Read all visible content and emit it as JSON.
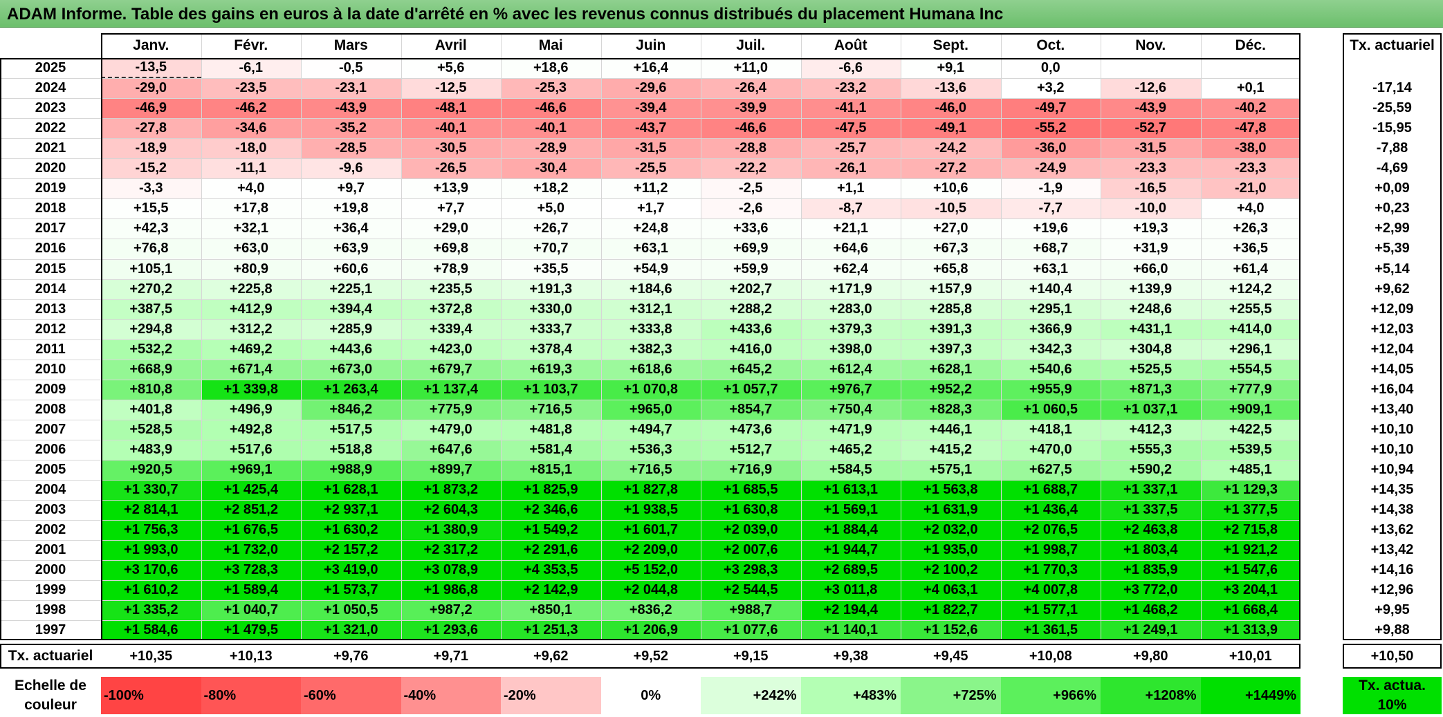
{
  "title": "ADAM Informe. Table des gains en euros à la date d'arrêté en % avec les revenus connus distribués du placement Humana Inc",
  "chart_data": {
    "type": "heatmap",
    "columns": [
      "Janv.",
      "Févr.",
      "Mars",
      "Avril",
      "Mai",
      "Juin",
      "Juil.",
      "Août",
      "Sept.",
      "Oct.",
      "Nov.",
      "Déc."
    ],
    "side_header": "Tx. actuariel",
    "row_label_total": "Tx. actuariel",
    "rows": [
      {
        "year": "2025",
        "values": [
          -13.5,
          -6.1,
          -0.5,
          5.6,
          18.6,
          16.4,
          11.0,
          -6.6,
          9.1,
          0.0,
          null,
          null
        ],
        "tx": null
      },
      {
        "year": "2024",
        "values": [
          -29.0,
          -23.5,
          -23.1,
          -12.5,
          -25.3,
          -29.6,
          -26.4,
          -23.2,
          -13.6,
          3.2,
          -12.6,
          0.1
        ],
        "tx": "-17,14"
      },
      {
        "year": "2023",
        "values": [
          -46.9,
          -46.2,
          -43.9,
          -48.1,
          -46.6,
          -39.4,
          -39.9,
          -41.1,
          -46.0,
          -49.7,
          -43.9,
          -40.2
        ],
        "tx": "-25,59"
      },
      {
        "year": "2022",
        "values": [
          -27.8,
          -34.6,
          -35.2,
          -40.1,
          -40.1,
          -43.7,
          -46.6,
          -47.5,
          -49.1,
          -55.2,
          -52.7,
          -47.8
        ],
        "tx": "-15,95"
      },
      {
        "year": "2021",
        "values": [
          -18.9,
          -18.0,
          -28.5,
          -30.5,
          -28.9,
          -31.5,
          -28.8,
          -25.7,
          -24.2,
          -36.0,
          -31.5,
          -38.0
        ],
        "tx": "-7,88"
      },
      {
        "year": "2020",
        "values": [
          -15.2,
          -11.1,
          -9.6,
          -26.5,
          -30.4,
          -25.5,
          -22.2,
          -26.1,
          -27.2,
          -24.9,
          -23.3,
          -23.3
        ],
        "tx": "-4,69"
      },
      {
        "year": "2019",
        "values": [
          -3.3,
          4.0,
          9.7,
          13.9,
          18.2,
          11.2,
          -2.5,
          1.1,
          10.6,
          -1.9,
          -16.5,
          -21.0
        ],
        "tx": "+0,09"
      },
      {
        "year": "2018",
        "values": [
          15.5,
          17.8,
          19.8,
          7.7,
          5.0,
          1.7,
          -2.6,
          -8.7,
          -10.5,
          -7.7,
          -10.0,
          4.0
        ],
        "tx": "+0,23"
      },
      {
        "year": "2017",
        "values": [
          42.3,
          32.1,
          36.4,
          29.0,
          26.7,
          24.8,
          33.6,
          21.1,
          27.0,
          19.6,
          19.3,
          26.3
        ],
        "tx": "+2,99"
      },
      {
        "year": "2016",
        "values": [
          76.8,
          63.0,
          63.9,
          69.8,
          70.7,
          63.1,
          69.9,
          64.6,
          67.3,
          68.7,
          31.9,
          36.5
        ],
        "tx": "+5,39"
      },
      {
        "year": "2015",
        "values": [
          105.1,
          80.9,
          60.6,
          78.9,
          35.5,
          54.9,
          59.9,
          62.4,
          65.8,
          63.1,
          66.0,
          61.4
        ],
        "tx": "+5,14"
      },
      {
        "year": "2014",
        "values": [
          270.2,
          225.8,
          225.1,
          235.5,
          191.3,
          184.6,
          202.7,
          171.9,
          157.9,
          140.4,
          139.9,
          124.2
        ],
        "tx": "+9,62"
      },
      {
        "year": "2013",
        "values": [
          387.5,
          412.9,
          394.4,
          372.8,
          330.0,
          312.1,
          288.2,
          283.0,
          285.8,
          295.1,
          248.6,
          255.5
        ],
        "tx": "+12,09"
      },
      {
        "year": "2012",
        "values": [
          294.8,
          312.2,
          285.9,
          339.4,
          333.7,
          333.8,
          433.6,
          379.3,
          391.3,
          366.9,
          431.1,
          414.0
        ],
        "tx": "+12,03"
      },
      {
        "year": "2011",
        "values": [
          532.2,
          469.2,
          443.6,
          423.0,
          378.4,
          382.3,
          416.0,
          398.0,
          397.3,
          342.3,
          304.8,
          296.1
        ],
        "tx": "+12,04"
      },
      {
        "year": "2010",
        "values": [
          668.9,
          671.4,
          673.0,
          679.7,
          619.3,
          618.6,
          645.2,
          612.4,
          628.1,
          540.6,
          525.5,
          554.5
        ],
        "tx": "+14,05"
      },
      {
        "year": "2009",
        "values": [
          810.8,
          1339.8,
          1263.4,
          1137.4,
          1103.7,
          1070.8,
          1057.7,
          976.7,
          952.2,
          955.9,
          871.3,
          777.9
        ],
        "tx": "+16,04"
      },
      {
        "year": "2008",
        "values": [
          401.8,
          496.9,
          846.2,
          775.9,
          716.5,
          965.0,
          854.7,
          750.4,
          828.3,
          1060.5,
          1037.1,
          909.1
        ],
        "tx": "+13,40"
      },
      {
        "year": "2007",
        "values": [
          528.5,
          492.8,
          517.5,
          479.0,
          481.8,
          494.7,
          473.6,
          471.9,
          446.1,
          418.1,
          412.3,
          422.5
        ],
        "tx": "+10,10"
      },
      {
        "year": "2006",
        "values": [
          483.9,
          517.6,
          518.8,
          647.6,
          581.4,
          536.3,
          512.7,
          465.2,
          415.2,
          470.0,
          555.3,
          539.5
        ],
        "tx": "+10,10"
      },
      {
        "year": "2005",
        "values": [
          920.5,
          969.1,
          988.9,
          899.7,
          815.1,
          716.5,
          716.9,
          584.5,
          575.1,
          627.5,
          590.2,
          485.1
        ],
        "tx": "+10,94"
      },
      {
        "year": "2004",
        "values": [
          1330.7,
          1425.4,
          1628.1,
          1873.2,
          1825.9,
          1827.8,
          1685.5,
          1613.1,
          1563.8,
          1688.7,
          1337.1,
          1129.3
        ],
        "tx": "+14,35"
      },
      {
        "year": "2003",
        "values": [
          2814.1,
          2851.2,
          2937.1,
          2604.3,
          2346.6,
          1938.5,
          1630.8,
          1569.1,
          1631.9,
          1436.4,
          1337.5,
          1377.5
        ],
        "tx": "+14,38"
      },
      {
        "year": "2002",
        "values": [
          1756.3,
          1676.5,
          1630.2,
          1380.9,
          1549.2,
          1601.7,
          2039.0,
          1884.4,
          2032.0,
          2076.5,
          2463.8,
          2715.8
        ],
        "tx": "+13,62"
      },
      {
        "year": "2001",
        "values": [
          1993.0,
          1732.0,
          2157.2,
          2317.2,
          2291.6,
          2209.0,
          2007.6,
          1944.7,
          1935.0,
          1998.7,
          1803.4,
          1921.2
        ],
        "tx": "+13,42"
      },
      {
        "year": "2000",
        "values": [
          3170.6,
          3728.3,
          3419.0,
          3078.9,
          4353.5,
          5152.0,
          3298.3,
          2689.5,
          2100.2,
          1770.3,
          1835.9,
          1547.6
        ],
        "tx": "+14,16"
      },
      {
        "year": "1999",
        "values": [
          1610.2,
          1589.4,
          1573.7,
          1986.8,
          2142.9,
          2044.8,
          2544.5,
          3011.8,
          4063.1,
          4007.8,
          3772.0,
          3204.1
        ],
        "tx": "+12,96"
      },
      {
        "year": "1998",
        "values": [
          1335.2,
          1040.7,
          1050.5,
          987.2,
          850.1,
          836.2,
          988.7,
          2194.4,
          1822.7,
          1577.1,
          1468.2,
          1668.4
        ],
        "tx": "+9,95"
      },
      {
        "year": "1997",
        "values": [
          1584.6,
          1479.5,
          1321.0,
          1293.6,
          1251.3,
          1206.9,
          1077.6,
          1140.1,
          1152.6,
          1361.5,
          1249.1,
          1313.9
        ],
        "tx": "+9,88"
      }
    ],
    "tx_row": [
      "+10,35",
      "+10,13",
      "+9,76",
      "+9,71",
      "+9,62",
      "+9,52",
      "+9,15",
      "+9,38",
      "+9,45",
      "+10,08",
      "+9,80",
      "+10,01"
    ],
    "tx_total": "+10,50",
    "scale": {
      "label": "Echelle de couleur",
      "stops": [
        {
          "label": "-100%",
          "value": -100,
          "color": "#ff4444"
        },
        {
          "label": "-80%",
          "value": -80,
          "color": "#ff5555"
        },
        {
          "label": "-60%",
          "value": -60,
          "color": "#ff6a6a"
        },
        {
          "label": "-40%",
          "value": -40,
          "color": "#ff9090"
        },
        {
          "label": "-20%",
          "value": -20,
          "color": "#ffc6c6"
        },
        {
          "label": "0%",
          "value": 0,
          "color": "#ffffff"
        },
        {
          "label": "+242%",
          "value": 242,
          "color": "#dcffdc"
        },
        {
          "label": "+483%",
          "value": 483,
          "color": "#b4ffb4"
        },
        {
          "label": "+725%",
          "value": 725,
          "color": "#8af58a"
        },
        {
          "label": "+966%",
          "value": 966,
          "color": "#5cf05c"
        },
        {
          "label": "+1208%",
          "value": 1208,
          "color": "#2ee62e"
        },
        {
          "label": "+1449%",
          "value": 1449,
          "color": "#00e000"
        }
      ],
      "tx_label": "Tx. actua. 10%",
      "tx_color": "#00e000"
    }
  }
}
